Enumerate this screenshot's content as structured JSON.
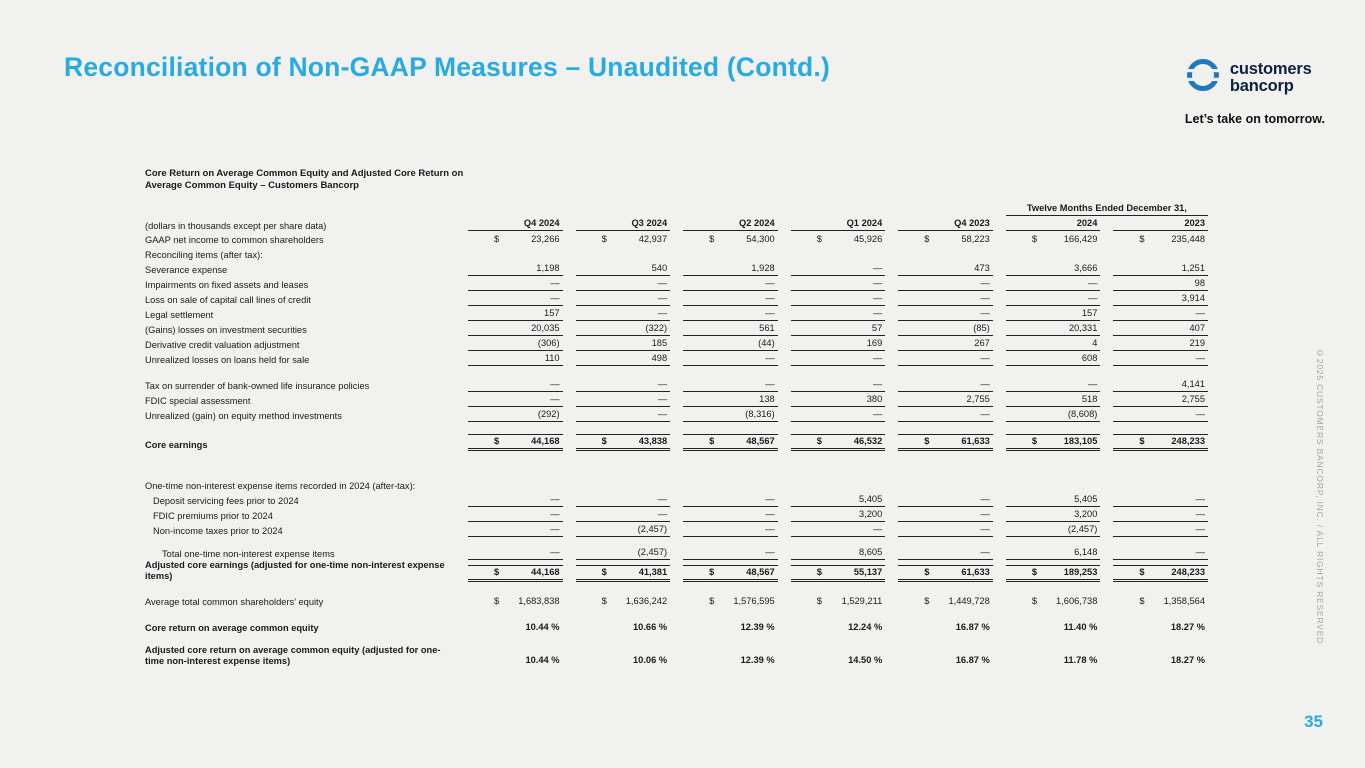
{
  "slide": {
    "title": "Reconciliation of Non-GAAP Measures – Unaudited (Contd.)",
    "page_number": "35",
    "copyright_vertical": "©2025 CUSTOMERS BANCORP, INC. / ALL RIGHTS RESERVED",
    "background_color": "#f1f1ef",
    "accent_color": "#29abe2"
  },
  "logo": {
    "name_line1": "customers",
    "name_line2": "bancorp",
    "tagline": "Let’s take on tomorrow.",
    "icon": "customers-bancorp-circle-icon",
    "icon_color": "#2277be",
    "text_color": "#0d2240"
  },
  "table": {
    "caption": "Core Return on Average Common Equity and Adjusted Core Return on Average Common Equity – Customers Bancorp",
    "group_header": "Twelve Months Ended December 31,",
    "unit_label": "(dollars in thousands except per share data)",
    "columns": [
      "Q4 2024",
      "Q3 2024",
      "Q2 2024",
      "Q1 2024",
      "Q4 2023",
      "2024",
      "2023"
    ],
    "rows": [
      {
        "type": "data",
        "label": "GAAP net income to common shareholders",
        "dollar": true,
        "underline": false,
        "values": [
          "23,266",
          "42,937",
          "54,300",
          "45,926",
          "58,223",
          "166,429",
          "235,448"
        ]
      },
      {
        "type": "section",
        "label": "Reconciling items (after tax):"
      },
      {
        "type": "data",
        "label": "Severance expense",
        "underline": true,
        "values": [
          "1,198",
          "540",
          "1,928",
          "—",
          "473",
          "3,666",
          "1,251"
        ]
      },
      {
        "type": "data",
        "label": "Impairments on fixed assets and leases",
        "underline": true,
        "values": [
          "—",
          "—",
          "—",
          "—",
          "—",
          "—",
          "98"
        ]
      },
      {
        "type": "data",
        "label": "Loss on sale of capital call lines of credit",
        "underline": true,
        "values": [
          "—",
          "—",
          "—",
          "—",
          "—",
          "—",
          "3,914"
        ]
      },
      {
        "type": "data",
        "label": "Legal settlement",
        "underline": true,
        "values": [
          "157",
          "—",
          "—",
          "—",
          "—",
          "157",
          "—"
        ]
      },
      {
        "type": "data",
        "label": "(Gains) losses on investment securities",
        "underline": true,
        "values": [
          "20,035",
          "(322)",
          "561",
          "57",
          "(85)",
          "20,331",
          "407"
        ]
      },
      {
        "type": "data",
        "label": "Derivative credit valuation adjustment",
        "underline": true,
        "values": [
          "(306)",
          "185",
          "(44)",
          "169",
          "267",
          "4",
          "219"
        ]
      },
      {
        "type": "data",
        "label": "Unrealized losses on loans held for sale",
        "underline": true,
        "values": [
          "110",
          "498",
          "—",
          "—",
          "—",
          "608",
          "—"
        ]
      },
      {
        "type": "spacer",
        "size": "s"
      },
      {
        "type": "data",
        "label": "Tax on surrender of bank-owned life insurance policies",
        "underline": true,
        "values": [
          "—",
          "—",
          "—",
          "—",
          "—",
          "—",
          "4,141"
        ]
      },
      {
        "type": "data",
        "label": "FDIC special assessment",
        "underline": true,
        "values": [
          "—",
          "—",
          "138",
          "380",
          "2,755",
          "518",
          "2,755"
        ]
      },
      {
        "type": "data",
        "label": "Unrealized (gain) on equity method investments",
        "underline": true,
        "values": [
          "(292)",
          "—",
          "(8,316)",
          "—",
          "—",
          "(8,608)",
          "—"
        ]
      },
      {
        "type": "spacer",
        "size": "m"
      },
      {
        "type": "total",
        "label": "Core earnings",
        "dollar": true,
        "values": [
          "44,168",
          "43,838",
          "48,567",
          "46,532",
          "61,633",
          "183,105",
          "248,233"
        ]
      },
      {
        "type": "spacer",
        "size": "l"
      },
      {
        "type": "section",
        "label": "One-time non-interest expense items recorded in 2024 (after-tax):"
      },
      {
        "type": "data",
        "label": "Deposit servicing fees prior to 2024",
        "indent": 1,
        "underline": true,
        "values": [
          "—",
          "—",
          "—",
          "5,405",
          "—",
          "5,405",
          "—"
        ]
      },
      {
        "type": "data",
        "label": "FDIC premiums prior to 2024",
        "indent": 1,
        "underline": true,
        "values": [
          "—",
          "—",
          "—",
          "3,200",
          "—",
          "3,200",
          "—"
        ]
      },
      {
        "type": "data",
        "label": "Non-income taxes prior to 2024",
        "indent": 1,
        "underline": true,
        "values": [
          "—",
          "(2,457)",
          "—",
          "—",
          "—",
          "(2,457)",
          "—"
        ]
      },
      {
        "type": "spacer",
        "size": "m"
      },
      {
        "type": "data",
        "label": "Total one-time non-interest expense items",
        "indent": 2,
        "underline": true,
        "values": [
          "—",
          "(2,457)",
          "—",
          "8,605",
          "—",
          "6,148",
          "—"
        ]
      },
      {
        "type": "total",
        "label": "Adjusted core earnings (adjusted for one-time non-interest expense items)",
        "dollar": true,
        "values": [
          "44,168",
          "41,381",
          "48,567",
          "55,137",
          "61,633",
          "189,253",
          "248,233"
        ]
      },
      {
        "type": "spacer",
        "size": "s"
      },
      {
        "type": "data",
        "label": "Average total common shareholders’ equity",
        "dollar": true,
        "underline": false,
        "values": [
          "1,683,838",
          "1,636,242",
          "1,576,595",
          "1,529,211",
          "1,449,728",
          "1,606,738",
          "1,358,564"
        ]
      },
      {
        "type": "spacer",
        "size": "s"
      },
      {
        "type": "data",
        "label": "Core return on average common equity",
        "bold": true,
        "underline": false,
        "values": [
          "10.44 %",
          "10.66 %",
          "12.39 %",
          "12.24 %",
          "16.87 %",
          "11.40 %",
          "18.27 %"
        ]
      },
      {
        "type": "spacer",
        "size": "s"
      },
      {
        "type": "data",
        "label": "Adjusted core return on average common equity (adjusted for one-time non-interest expense items)",
        "bold": true,
        "underline": false,
        "values": [
          "10.44 %",
          "10.06 %",
          "12.39 %",
          "14.50 %",
          "16.87 %",
          "11.78 %",
          "18.27 %"
        ]
      }
    ]
  }
}
